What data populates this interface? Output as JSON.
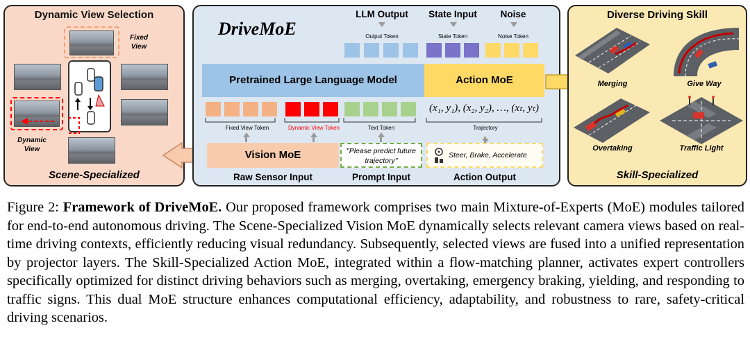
{
  "left_panel": {
    "title": "Dynamic View Selection",
    "fixed_view_label": "Fixed View",
    "dynamic_view_label": "Dynamic View",
    "footer": "Scene-Specialized"
  },
  "middle_panel": {
    "title": "DriveMoE",
    "llm_output": "LLM Output",
    "state_input": "State Input",
    "noise": "Noise",
    "output_token": "Output Token",
    "state_token": "State Token",
    "noise_token": "Noise Token",
    "llm_block": "Pretrained Large Language Model",
    "action_moe": "Action MoE",
    "fixed_view_token": "Fixed View Token",
    "dynamic_view_token": "Dynamic View Token",
    "text_token": "Text Token",
    "trajectory_formula": "(x₁, y₁), (x₂, y₂), …, (xₜ, yₜ)",
    "trajectory": "Trajectory",
    "vision_moe": "Vision MoE",
    "prompt_text": "\"Please predict future trajectory\"",
    "action_text": "Steer, Brake, Accelerate",
    "raw_sensor_input": "Raw Sensor Input",
    "prompt_input": "Prompt Input",
    "action_output": "Action Output"
  },
  "right_panel": {
    "title": "Diverse Driving Skill",
    "skills": [
      "Merging",
      "Give Way",
      "Overtaking",
      "Traffic Light"
    ],
    "footer": "Skill-Specialized"
  },
  "caption": {
    "prefix": "Figure 2: ",
    "bold": "Framework of DriveMoE.",
    "text": " Our proposed framework comprises two main Mixture-of-Experts (MoE) modules tailored for end-to-end autonomous driving. The Scene-Specialized Vision MoE dynamically selects relevant camera views based on real-time driving contexts, efficiently reducing visual redundancy. Subsequently, selected views are fused into a unified representation by projector layers. The Skill-Specialized Action MoE, integrated within a flow-matching planner, activates expert controllers specifically optimized for distinct driving behaviors such as merging, overtaking, emergency braking, yielding, and responding to traffic signs. This dual MoE structure enhances computational efficiency, adaptability, and robustness to rare, safety-critical driving scenarios."
  },
  "colors": {
    "left_bg": "#f9d8c8",
    "mid_bg": "#dde7f2",
    "right_bg": "#fbe9b4",
    "llm_block": "#9dc3e6",
    "action_block": "#ffd966",
    "vision_block": "#f4b183",
    "dynamic_red": "#ff0000"
  }
}
